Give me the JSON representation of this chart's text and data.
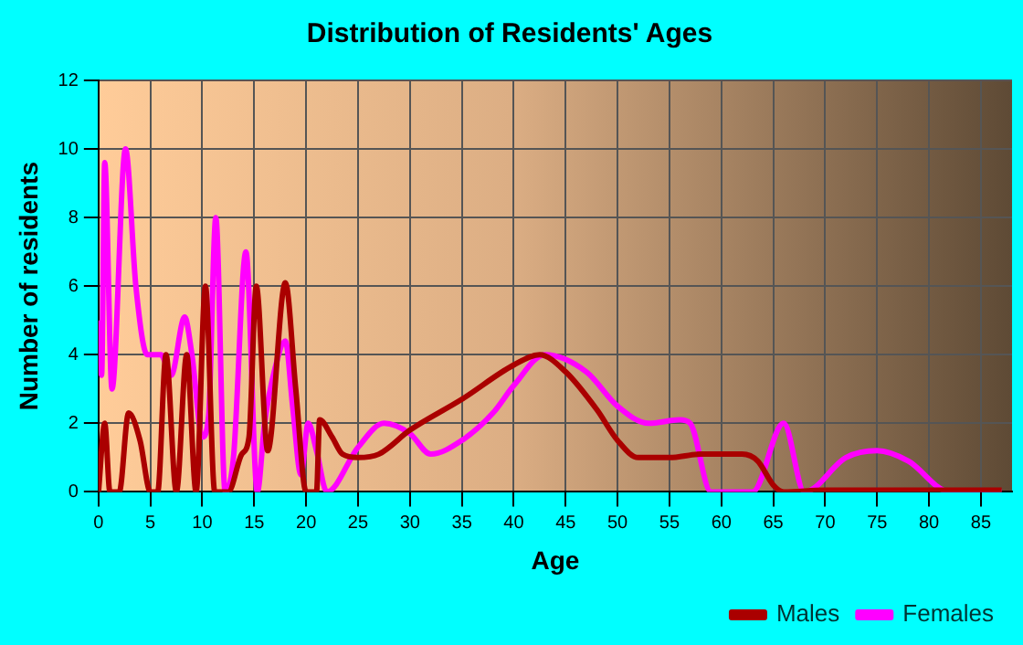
{
  "chart_data": {
    "type": "line",
    "title": "Distribution of Residents' Ages",
    "xlabel": "Age",
    "ylabel": "Number of residents",
    "xlim": [
      0,
      88
    ],
    "xticks": [
      0,
      5,
      10,
      15,
      20,
      25,
      30,
      35,
      40,
      45,
      50,
      55,
      60,
      65,
      70,
      75,
      80,
      85
    ],
    "ylim": [
      0,
      12
    ],
    "yticks": [
      0,
      2,
      4,
      6,
      8,
      10,
      12
    ],
    "grid": true,
    "legend": "bottom right",
    "marker": "none",
    "line_style": "solid",
    "series": [
      {
        "name": "Males",
        "color": "#aa0000",
        "x": [
          0,
          0.6,
          1.1,
          2,
          2.9,
          4,
          5,
          5.7,
          6.5,
          7.5,
          8.5,
          9.4,
          10.3,
          11.2,
          12.5,
          13.8,
          14.5,
          15.2,
          16.3,
          18,
          19,
          20,
          21,
          21.3,
          22.5,
          23.5,
          25,
          27,
          30,
          35,
          40,
          42.5,
          45,
          48,
          50,
          52,
          55,
          58,
          62,
          63.5,
          65,
          66,
          70,
          87
        ],
        "values": [
          0,
          2,
          0,
          0,
          2.3,
          1.5,
          0,
          0,
          4,
          0,
          4,
          0,
          6,
          0,
          0,
          1.1,
          1.6,
          6,
          1.2,
          6.1,
          3,
          0,
          0,
          2.1,
          1.6,
          1.1,
          1,
          1.1,
          1.8,
          2.7,
          3.7,
          4,
          3.5,
          2.4,
          1.5,
          1,
          1,
          1.1,
          1.1,
          0.9,
          0.2,
          0,
          0.05,
          0.05
        ]
      },
      {
        "name": "Females",
        "color": "#ff00ff",
        "x": [
          0,
          0.3,
          0.6,
          1.3,
          2.6,
          3.6,
          4.7,
          6,
          7,
          8.3,
          9,
          10,
          10.6,
          11.3,
          12.2,
          13,
          14.2,
          15.3,
          16,
          17,
          18,
          18.7,
          19.5,
          20.2,
          21,
          22,
          25,
          27.5,
          30,
          32,
          35,
          38,
          40,
          43,
          47,
          50,
          53,
          56,
          57,
          59,
          63,
          66,
          68,
          72,
          75,
          78,
          82,
          87
        ],
        "values": [
          5,
          3.4,
          9.6,
          3,
          10,
          6,
          4,
          4,
          3.4,
          5.1,
          4,
          1.6,
          2.2,
          8,
          0,
          1,
          7,
          0,
          2,
          3.6,
          4.4,
          2.5,
          0.5,
          2,
          1.2,
          0,
          1.3,
          2,
          1.7,
          1.1,
          1.5,
          2.3,
          3.1,
          4,
          3.5,
          2.5,
          2,
          2.1,
          2,
          0,
          0,
          2,
          0,
          1,
          1.2,
          0.9,
          0,
          0
        ]
      }
    ]
  }
}
